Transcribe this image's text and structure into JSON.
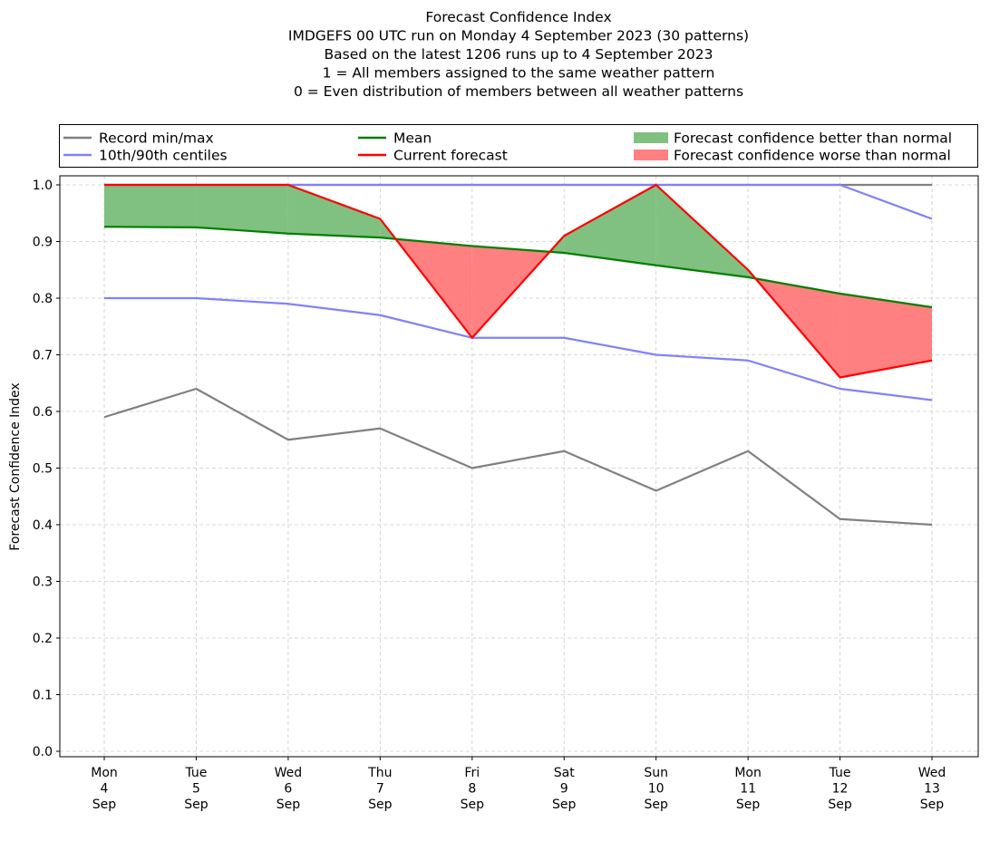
{
  "chart_data": {
    "type": "line",
    "title_lines": [
      "Forecast Confidence Index",
      "IMDGEFS 00 UTC run on Monday 4 September 2023 (30 patterns)",
      "Based on the latest 1206 runs up to 4 September 2023",
      "1 = All members assigned to the same weather pattern",
      "0 = Even distribution of members between all weather patterns"
    ],
    "ylabel": "Forecast Confidence Index",
    "xlabel": "",
    "ylim": [
      0.0,
      1.0
    ],
    "yticks": [
      "0.0",
      "0.1",
      "0.2",
      "0.3",
      "0.4",
      "0.5",
      "0.6",
      "0.7",
      "0.8",
      "0.9",
      "1.0"
    ],
    "grid": true,
    "categories": [
      [
        "Mon",
        "4",
        "Sep"
      ],
      [
        "Tue",
        "5",
        "Sep"
      ],
      [
        "Wed",
        "6",
        "Sep"
      ],
      [
        "Thu",
        "7",
        "Sep"
      ],
      [
        "Fri",
        "8",
        "Sep"
      ],
      [
        "Sat",
        "9",
        "Sep"
      ],
      [
        "Sun",
        "10",
        "Sep"
      ],
      [
        "Mon",
        "11",
        "Sep"
      ],
      [
        "Tue",
        "12",
        "Sep"
      ],
      [
        "Wed",
        "13",
        "Sep"
      ]
    ],
    "legend": {
      "placement": "top",
      "entries": [
        {
          "label": "Record min/max",
          "kind": "line",
          "color": "#808080"
        },
        {
          "label": "10th/90th centiles",
          "kind": "line",
          "color": "#8080ff"
        },
        {
          "label": "Mean",
          "kind": "line",
          "color": "#008000"
        },
        {
          "label": "Current forecast",
          "kind": "line",
          "color": "#ff0000"
        },
        {
          "label": "Forecast confidence better than normal",
          "kind": "patch",
          "color": "#80c080"
        },
        {
          "label": "Forecast confidence worse than normal",
          "kind": "patch",
          "color": "#ff8080"
        }
      ]
    },
    "series": [
      {
        "name": "Record min",
        "color": "#808080",
        "values": [
          0.59,
          0.64,
          0.55,
          0.57,
          0.5,
          0.53,
          0.46,
          0.53,
          0.41,
          0.4
        ]
      },
      {
        "name": "Record max",
        "color": "#808080",
        "values": [
          1.0,
          1.0,
          1.0,
          1.0,
          1.0,
          1.0,
          1.0,
          1.0,
          1.0,
          1.0
        ]
      },
      {
        "name": "10th centile",
        "color": "#8080ff",
        "values": [
          0.8,
          0.8,
          0.79,
          0.77,
          0.73,
          0.73,
          0.7,
          0.69,
          0.64,
          0.62
        ]
      },
      {
        "name": "90th centile",
        "color": "#8080ff",
        "values": [
          1.0,
          1.0,
          1.0,
          1.0,
          1.0,
          1.0,
          1.0,
          1.0,
          1.0,
          0.94
        ]
      },
      {
        "name": "Mean",
        "color": "#008000",
        "values": [
          0.926,
          0.925,
          0.914,
          0.907,
          0.892,
          0.88,
          0.858,
          0.837,
          0.808,
          0.784
        ]
      },
      {
        "name": "Current forecast",
        "color": "#ff0000",
        "values": [
          1.0,
          1.0,
          1.0,
          0.94,
          0.73,
          0.91,
          1.0,
          0.85,
          0.66,
          0.69
        ]
      }
    ]
  }
}
